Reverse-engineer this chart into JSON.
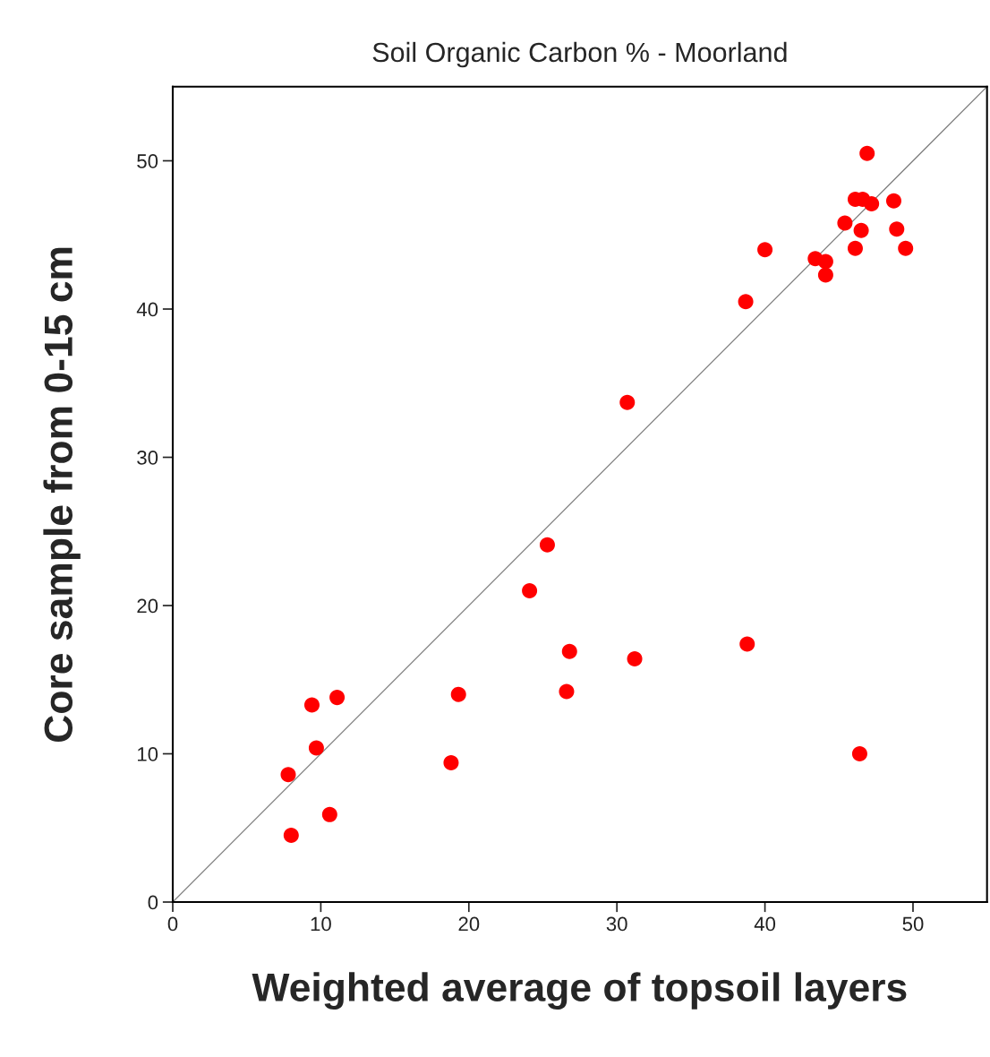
{
  "chart_data": {
    "type": "scatter",
    "title": "Soil Organic Carbon % - Moorland",
    "xlabel": "Weighted average of topsoil layers",
    "ylabel": "Core sample from 0-15 cm",
    "xlim": [
      0,
      55
    ],
    "ylim": [
      0,
      55
    ],
    "xticks": [
      0,
      10,
      20,
      30,
      40,
      50
    ],
    "yticks": [
      0,
      10,
      20,
      30,
      40,
      50
    ],
    "grid": false,
    "legend": false,
    "marker": "circle",
    "series": [
      {
        "color": "#ff0000",
        "x": [
          46.9,
          46.1,
          46.6,
          47.2,
          48.7,
          45.4,
          46.4,
          46.5,
          48.9,
          49.5,
          46.1,
          40.0,
          43.4,
          44.1,
          44.1,
          38.7,
          30.7,
          25.3,
          24.1,
          26.8,
          31.2,
          38.8,
          26.6,
          19.3,
          18.8,
          46.4,
          11.1,
          9.4,
          9.7,
          7.8,
          10.6,
          8.0
        ],
        "values": [
          50.5,
          47.4,
          47.4,
          47.1,
          47.3,
          45.8,
          null,
          45.3,
          45.4,
          44.1,
          44.1,
          44.0,
          43.4,
          43.2,
          42.3,
          40.5,
          33.7,
          24.1,
          21.0,
          16.9,
          16.4,
          17.4,
          14.2,
          14.0,
          9.4,
          10.0,
          13.8,
          13.3,
          10.4,
          8.6,
          5.9,
          4.5
        ]
      },
      {
        "type": "line",
        "color": "#808080",
        "line_style": "solid",
        "marker": "none",
        "x": [
          0,
          55
        ],
        "values": [
          0,
          55
        ]
      }
    ]
  }
}
